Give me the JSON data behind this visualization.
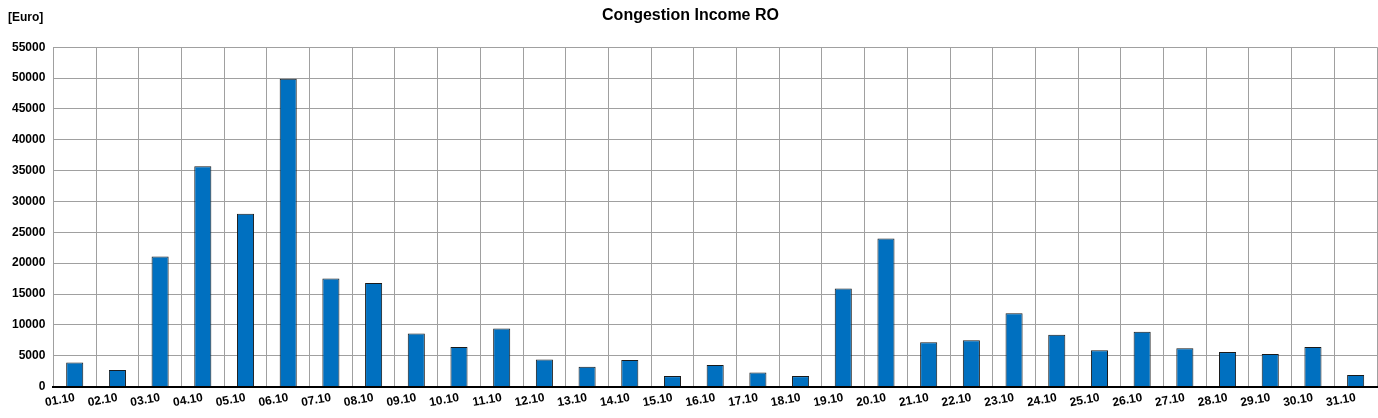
{
  "chart_data": {
    "type": "bar",
    "title": "Congestion Income RO",
    "ylabel": "[Euro]",
    "categories": [
      "01.10",
      "02.10",
      "03.10",
      "04.10",
      "05.10",
      "06.10",
      "07.10",
      "08.10",
      "09.10",
      "10.10",
      "11.10",
      "12.10",
      "13.10",
      "14.10",
      "15.10",
      "16.10",
      "17.10",
      "18.10",
      "19.10",
      "20.10",
      "21.10",
      "22.10",
      "23.10",
      "24.10",
      "25.10",
      "26.10",
      "27.10",
      "28.10",
      "29.10",
      "30.10",
      "31.10"
    ],
    "values": [
      3900,
      2700,
      21100,
      35700,
      28000,
      49900,
      17500,
      16800,
      8600,
      6400,
      9400,
      4400,
      3200,
      4300,
      1700,
      3500,
      2300,
      1700,
      15900,
      24000,
      7200,
      7500,
      11900,
      8400,
      5900,
      8900,
      6200,
      5600,
      5300,
      6400,
      1900
    ],
    "color": "#0070c0",
    "ylim": [
      0,
      55000
    ],
    "yticks": [
      0,
      5000,
      10000,
      15000,
      20000,
      25000,
      30000,
      35000,
      40000,
      45000,
      50000,
      55000
    ],
    "grid": true,
    "legend": false
  }
}
